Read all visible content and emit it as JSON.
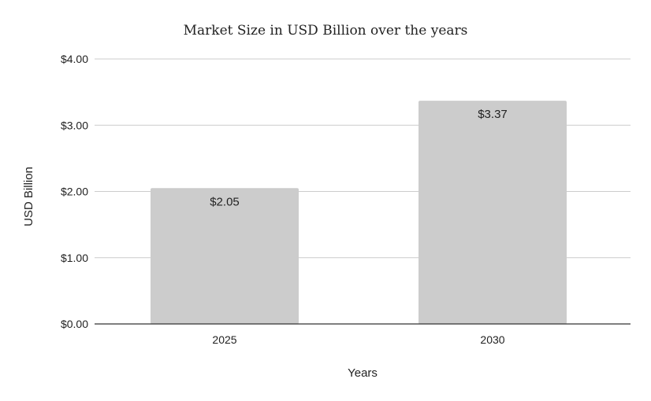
{
  "chart_data": {
    "type": "bar",
    "title": "Market Size in USD Billion over the years",
    "xlabel": "Years",
    "ylabel": "USD Billion",
    "categories": [
      "2025",
      "2030"
    ],
    "values": [
      2.05,
      3.37
    ],
    "data_labels": [
      "$2.05",
      "$3.37"
    ],
    "ylim": [
      0,
      4
    ],
    "yticks": [
      0,
      1,
      2,
      3,
      4
    ],
    "ytick_labels": [
      "$0.00",
      "$1.00",
      "$2.00",
      "$3.00",
      "$4.00"
    ],
    "grid": true,
    "legend": "none",
    "colors": {
      "bar": "#cccccc",
      "grid": "#cccccc",
      "axis": "#333333",
      "text": "#222222"
    }
  }
}
